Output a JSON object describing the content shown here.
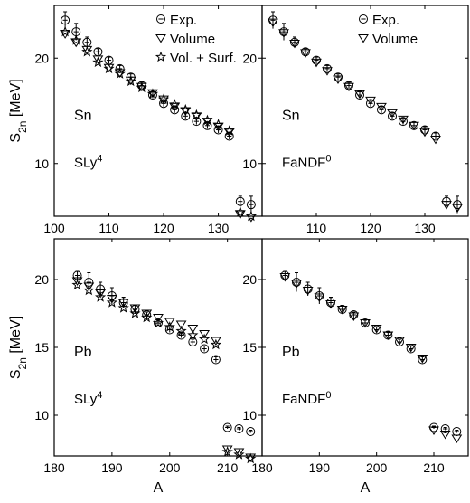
{
  "chart_data": [
    {
      "type": "scatter",
      "nucleus": "Sn",
      "model": "SLy4",
      "ylabel": "S2n [MeV]",
      "ylim": [
        5,
        25
      ],
      "yticks": [
        10,
        20
      ],
      "xlim": [
        100,
        138
      ],
      "xticks": [
        100,
        110,
        120,
        130
      ],
      "legend": [
        "Exp.",
        "Volume",
        "Vol. + Surf."
      ],
      "legend_position": "top-right",
      "series": [
        {
          "name": "Exp.",
          "marker": "circle",
          "x": [
            102,
            104,
            106,
            108,
            110,
            112,
            114,
            116,
            118,
            120,
            122,
            124,
            126,
            128,
            130,
            132,
            134,
            136
          ],
          "y": [
            23.6,
            22.5,
            21.5,
            20.6,
            19.8,
            19.0,
            18.2,
            17.4,
            16.5,
            15.7,
            15.1,
            14.5,
            14.0,
            13.6,
            13.2,
            12.6,
            6.4,
            6.1
          ],
          "err": [
            0.8,
            0.8,
            0.5,
            0.3,
            0.3,
            0.3,
            0.3,
            0.3,
            0.3,
            0.3,
            0.3,
            0.3,
            0.3,
            0.3,
            0.3,
            0.3,
            0.5,
            0.8
          ]
        },
        {
          "name": "Volume",
          "marker": "triangle",
          "x": [
            102,
            104,
            106,
            108,
            110,
            112,
            114,
            116,
            118,
            120,
            122,
            124,
            126,
            128,
            130,
            132,
            134,
            136
          ],
          "y": [
            22.3,
            21.5,
            20.8,
            19.9,
            19.1,
            18.6,
            17.9,
            17.3,
            16.7,
            16.1,
            15.4,
            15.0,
            14.5,
            14.0,
            13.5,
            13.0,
            5.2,
            4.9
          ]
        },
        {
          "name": "Vol. + Surf.",
          "marker": "star",
          "x": [
            102,
            104,
            106,
            108,
            110,
            112,
            114,
            116,
            118,
            120,
            122,
            124,
            126,
            128,
            130,
            132,
            134,
            136
          ],
          "y": [
            22.5,
            21.7,
            20.6,
            19.6,
            19.0,
            18.5,
            17.8,
            17.2,
            16.6,
            16.1,
            15.6,
            15.1,
            14.6,
            14.1,
            13.7,
            13.1,
            5.4,
            5.0
          ]
        }
      ]
    },
    {
      "type": "scatter",
      "nucleus": "Sn",
      "model": "FaNDF0",
      "ylim": [
        5,
        25
      ],
      "yticks": [
        10,
        20
      ],
      "xlim": [
        100,
        138
      ],
      "xticks": [
        110,
        120,
        130
      ],
      "legend": [
        "Exp.",
        "Volume"
      ],
      "legend_position": "top-right",
      "series": [
        {
          "name": "Exp.",
          "marker": "circle",
          "x": [
            102,
            104,
            106,
            108,
            110,
            112,
            114,
            116,
            118,
            120,
            122,
            124,
            126,
            128,
            130,
            132,
            134,
            136
          ],
          "y": [
            23.6,
            22.5,
            21.5,
            20.6,
            19.8,
            19.0,
            18.2,
            17.4,
            16.5,
            15.7,
            15.1,
            14.5,
            14.0,
            13.6,
            13.2,
            12.6,
            6.4,
            6.1
          ],
          "err": [
            0.8,
            0.8,
            0.5,
            0.3,
            0.3,
            0.3,
            0.3,
            0.3,
            0.3,
            0.3,
            0.3,
            0.3,
            0.3,
            0.3,
            0.3,
            0.3,
            0.5,
            0.8
          ]
        },
        {
          "name": "Volume",
          "marker": "triangle",
          "x": [
            102,
            104,
            106,
            108,
            110,
            112,
            114,
            116,
            118,
            120,
            122,
            124,
            126,
            128,
            130,
            132,
            134,
            136
          ],
          "y": [
            23.4,
            22.4,
            21.4,
            20.5,
            19.6,
            18.8,
            18.0,
            17.3,
            16.6,
            16.0,
            15.4,
            14.8,
            14.2,
            13.6,
            13.0,
            12.3,
            6.1,
            5.8
          ]
        }
      ]
    },
    {
      "type": "scatter",
      "nucleus": "Pb",
      "model": "SLy4",
      "ylabel": "S2n [MeV]",
      "xlabel": "A",
      "ylim": [
        7,
        23
      ],
      "yticks": [
        10,
        15,
        20
      ],
      "xlim": [
        180,
        216
      ],
      "xticks": [
        180,
        190,
        200,
        210
      ],
      "series": [
        {
          "name": "Exp.",
          "marker": "circle",
          "x": [
            184,
            186,
            188,
            190,
            192,
            194,
            196,
            198,
            200,
            202,
            204,
            206,
            208,
            210,
            212,
            214
          ],
          "y": [
            20.3,
            19.8,
            19.3,
            18.8,
            18.3,
            17.8,
            17.4,
            16.8,
            16.3,
            15.9,
            15.4,
            14.9,
            14.1,
            9.1,
            9.0,
            8.8
          ],
          "err": [
            0.3,
            0.7,
            0.5,
            0.6,
            0.4,
            0.3,
            0.2,
            0.2,
            0.2,
            0.2,
            0.2,
            0.2,
            0.2,
            0.1,
            0.1,
            0.1
          ]
        },
        {
          "name": "Volume",
          "marker": "triangle",
          "x": [
            184,
            186,
            188,
            190,
            192,
            194,
            196,
            198,
            200,
            202,
            204,
            206,
            208,
            210,
            212,
            214
          ],
          "y": [
            19.9,
            19.5,
            19.0,
            18.6,
            18.3,
            17.9,
            17.5,
            17.2,
            16.9,
            16.7,
            16.4,
            16.0,
            15.5,
            7.5,
            7.3,
            6.9
          ]
        },
        {
          "name": "Vol. + Surf.",
          "marker": "star",
          "x": [
            184,
            186,
            188,
            190,
            192,
            194,
            196,
            198,
            200,
            202,
            204,
            206,
            208,
            210,
            212,
            214
          ],
          "y": [
            19.6,
            19.2,
            18.7,
            18.3,
            17.9,
            17.5,
            17.2,
            16.8,
            16.5,
            16.2,
            15.9,
            15.6,
            15.2,
            7.3,
            7.1,
            6.8
          ]
        }
      ]
    },
    {
      "type": "scatter",
      "nucleus": "Pb",
      "model": "FaNDF0",
      "xlabel": "A",
      "ylim": [
        7,
        23
      ],
      "yticks": [
        10,
        15,
        20
      ],
      "xlim": [
        180,
        216
      ],
      "xticks": [
        180,
        190,
        200,
        210
      ],
      "series": [
        {
          "name": "Exp.",
          "marker": "circle",
          "x": [
            184,
            186,
            188,
            190,
            192,
            194,
            196,
            198,
            200,
            202,
            204,
            206,
            208,
            210,
            212,
            214
          ],
          "y": [
            20.3,
            19.8,
            19.3,
            18.8,
            18.3,
            17.8,
            17.4,
            16.8,
            16.3,
            15.9,
            15.4,
            14.9,
            14.1,
            9.1,
            9.0,
            8.8
          ],
          "err": [
            0.3,
            0.7,
            0.5,
            0.6,
            0.4,
            0.3,
            0.2,
            0.2,
            0.2,
            0.2,
            0.2,
            0.2,
            0.2,
            0.1,
            0.1,
            0.1
          ]
        },
        {
          "name": "Volume",
          "marker": "triangle",
          "x": [
            184,
            186,
            188,
            190,
            192,
            194,
            196,
            198,
            200,
            202,
            204,
            206,
            208,
            210,
            212,
            214
          ],
          "y": [
            20.2,
            19.7,
            19.2,
            18.7,
            18.2,
            17.8,
            17.3,
            16.8,
            16.4,
            15.9,
            15.5,
            15.0,
            14.2,
            8.9,
            8.6,
            8.3
          ]
        }
      ]
    }
  ]
}
